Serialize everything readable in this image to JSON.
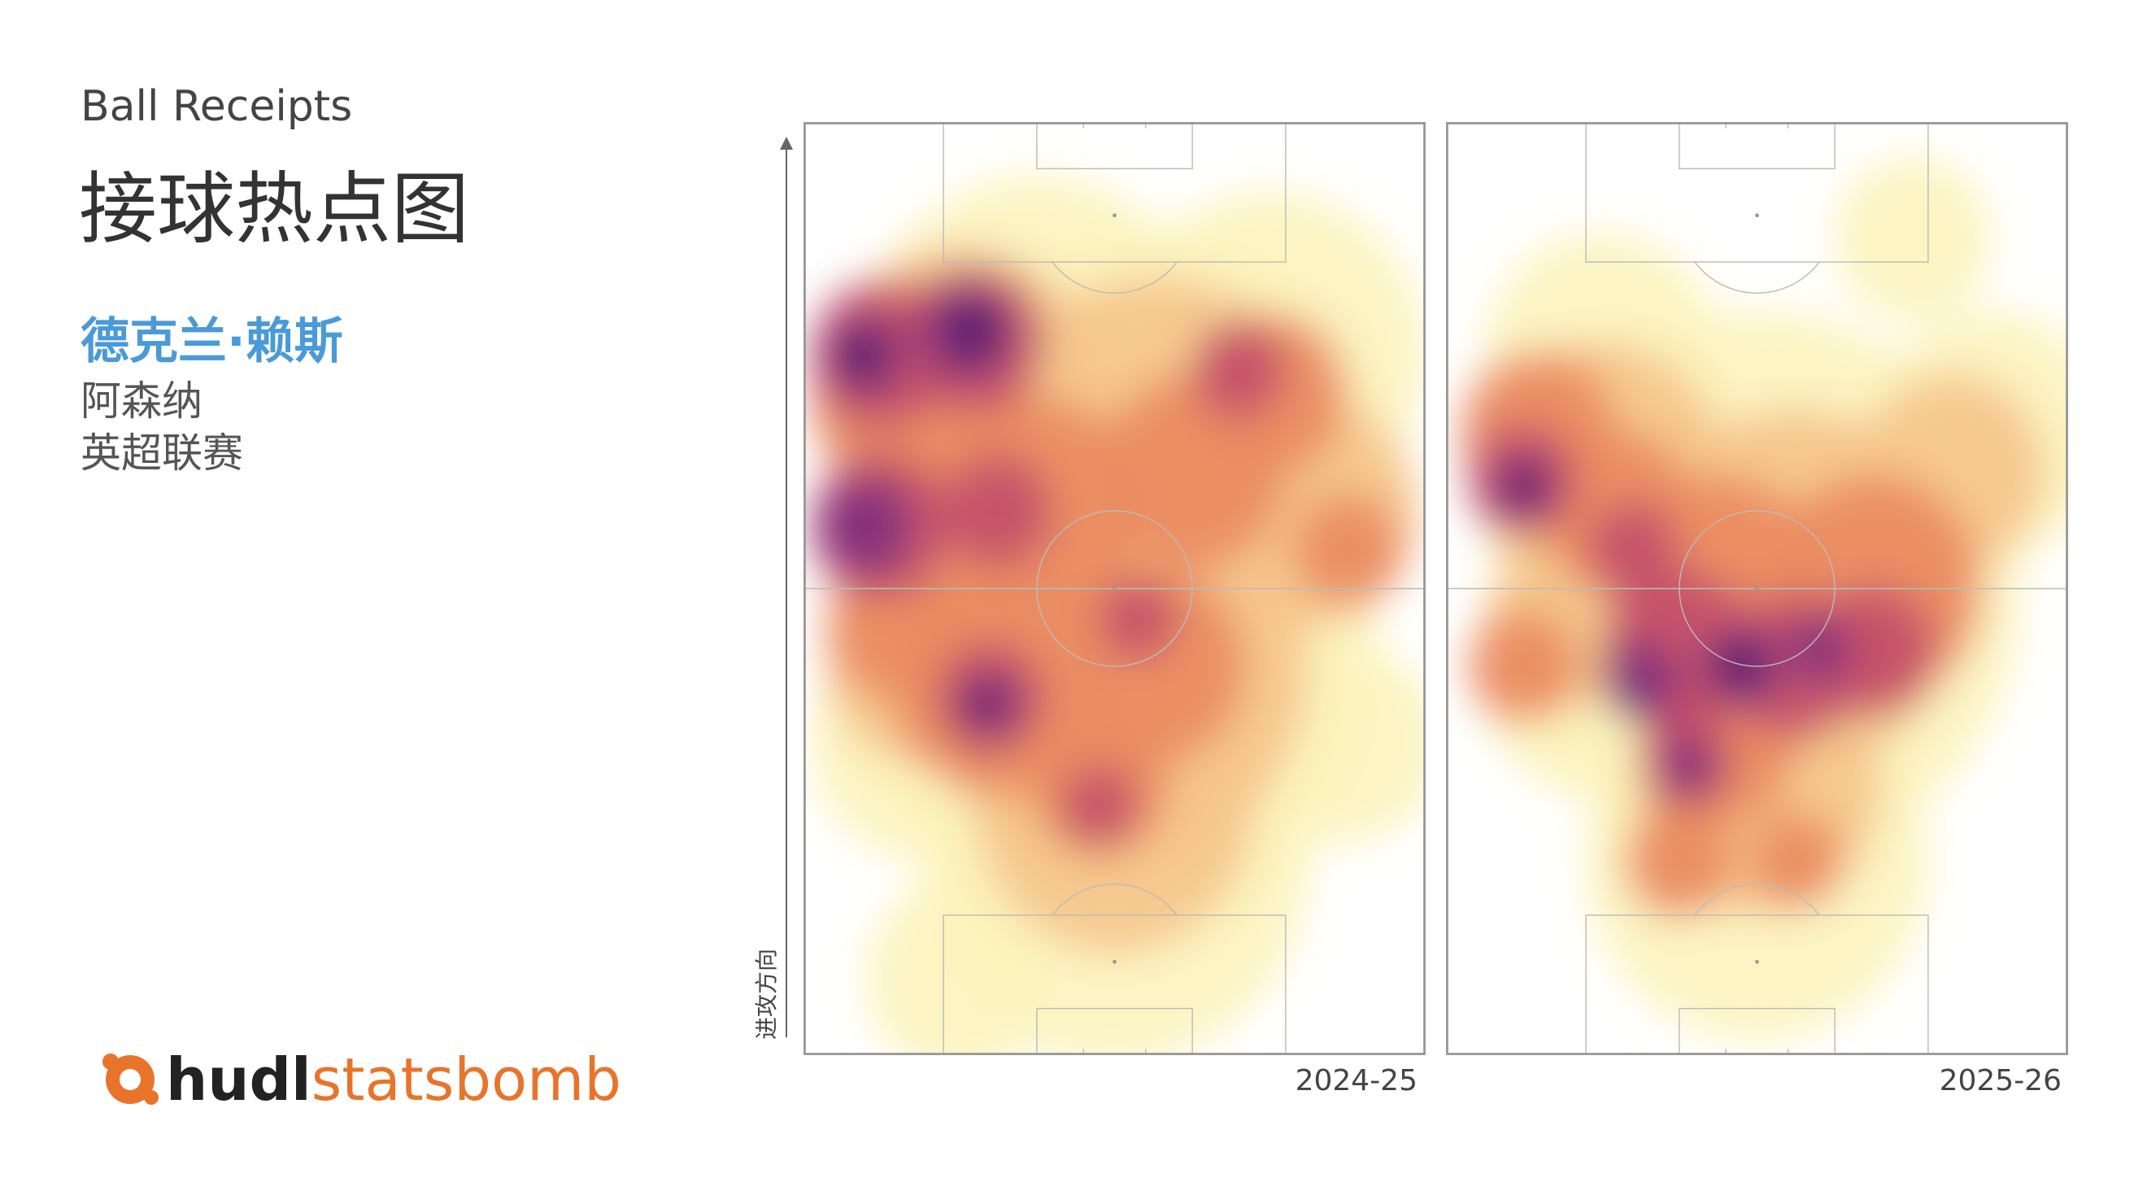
{
  "header": {
    "subtitle": "Ball Receipts",
    "title": "接球热点图"
  },
  "player": {
    "name": "德克兰·赖斯",
    "team": "阿森纳",
    "competition": "英超联赛"
  },
  "pitches": [
    {
      "label": "2024-25"
    },
    {
      "label": "2025-26"
    }
  ],
  "direction_label": "进攻方向",
  "logo": {
    "brand": "hudl",
    "product": "statsbomb"
  }
}
